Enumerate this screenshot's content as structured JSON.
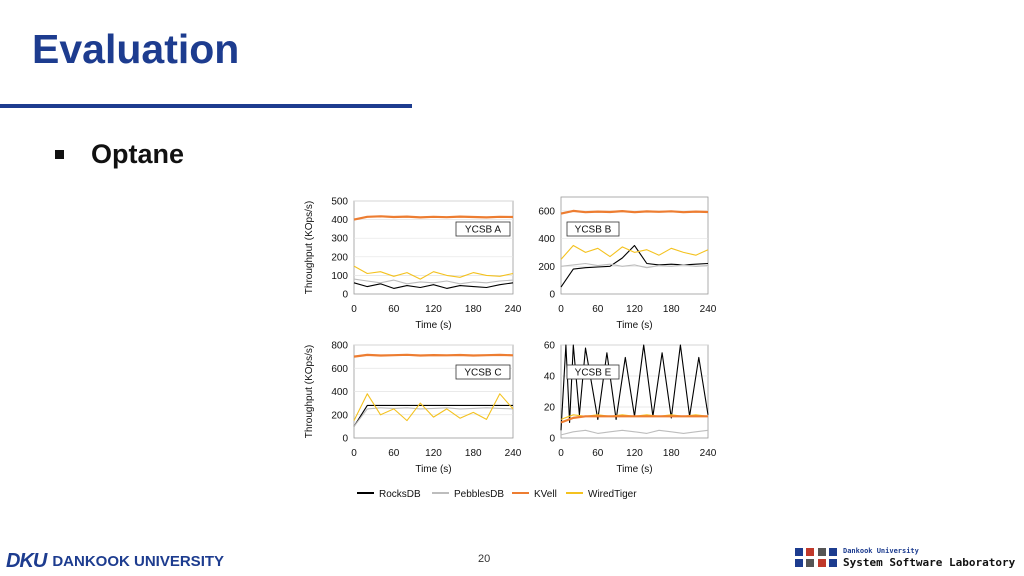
{
  "slide": {
    "title": "Evaluation",
    "bullet": "Optane",
    "page_number": "20",
    "title_color": "#1d3c8f"
  },
  "footer": {
    "university": "DANKOOK UNIVERSITY",
    "univ_mark": "DKU",
    "lab_university": "Dankook University",
    "lab_name": "System Software Laboratory"
  },
  "legend": [
    {
      "name": "RocksDB",
      "color": "#000000"
    },
    {
      "name": "PebblesDB",
      "color": "#bdbdbd"
    },
    {
      "name": "KVell",
      "color": "#ed7d31"
    },
    {
      "name": "WiredTiger",
      "color": "#f4c21f"
    }
  ],
  "chart_data": [
    {
      "type": "line",
      "label": "YCSB A",
      "xlabel": "Time (s)",
      "ylabel": "Throughput (KOps/s)",
      "xlim": [
        0,
        240
      ],
      "ylim": [
        0,
        500
      ],
      "xticks": [
        0,
        60,
        120,
        180,
        240
      ],
      "yticks": [
        0,
        100,
        200,
        300,
        400,
        500
      ],
      "series": [
        {
          "name": "KVell",
          "color": "#ed7d31",
          "x": [
            0,
            20,
            40,
            60,
            80,
            100,
            120,
            140,
            160,
            180,
            200,
            220,
            240
          ],
          "y": [
            400,
            415,
            418,
            414,
            416,
            412,
            415,
            413,
            416,
            414,
            412,
            415,
            414
          ]
        },
        {
          "name": "WiredTiger",
          "color": "#f4c21f",
          "x": [
            0,
            20,
            40,
            60,
            80,
            100,
            120,
            140,
            160,
            180,
            200,
            220,
            240
          ],
          "y": [
            150,
            110,
            120,
            95,
            115,
            80,
            120,
            100,
            90,
            115,
            100,
            95,
            110
          ]
        },
        {
          "name": "PebblesDB",
          "color": "#bdbdbd",
          "x": [
            0,
            20,
            40,
            60,
            80,
            100,
            120,
            140,
            160,
            180,
            200,
            220,
            240
          ],
          "y": [
            80,
            70,
            60,
            75,
            55,
            65,
            60,
            70,
            55,
            65,
            60,
            70,
            75
          ]
        },
        {
          "name": "RocksDB",
          "color": "#000000",
          "x": [
            0,
            20,
            40,
            60,
            80,
            100,
            120,
            140,
            160,
            180,
            200,
            220,
            240
          ],
          "y": [
            60,
            40,
            55,
            30,
            45,
            35,
            50,
            30,
            45,
            40,
            35,
            50,
            60
          ]
        }
      ]
    },
    {
      "type": "line",
      "label": "YCSB B",
      "xlabel": "Time (s)",
      "ylabel": "",
      "xlim": [
        0,
        240
      ],
      "ylim": [
        0,
        700
      ],
      "xticks": [
        0,
        60,
        120,
        180,
        240
      ],
      "yticks": [
        0,
        200,
        400,
        600
      ],
      "series": [
        {
          "name": "KVell",
          "color": "#ed7d31",
          "x": [
            0,
            20,
            40,
            60,
            80,
            100,
            120,
            140,
            160,
            180,
            200,
            220,
            240
          ],
          "y": [
            580,
            600,
            590,
            595,
            592,
            598,
            590,
            596,
            593,
            597,
            590,
            595,
            592
          ]
        },
        {
          "name": "WiredTiger",
          "color": "#f4c21f",
          "x": [
            0,
            20,
            40,
            60,
            80,
            100,
            120,
            140,
            160,
            180,
            200,
            220,
            240
          ],
          "y": [
            250,
            350,
            300,
            330,
            270,
            340,
            300,
            320,
            280,
            330,
            300,
            280,
            320
          ]
        },
        {
          "name": "PebblesDB",
          "color": "#bdbdbd",
          "x": [
            0,
            20,
            40,
            60,
            80,
            100,
            120,
            140,
            160,
            180,
            200,
            220,
            240
          ],
          "y": [
            200,
            210,
            220,
            205,
            215,
            200,
            210,
            190,
            205,
            200,
            210,
            200,
            205
          ]
        },
        {
          "name": "RocksDB",
          "color": "#000000",
          "x": [
            0,
            20,
            40,
            60,
            80,
            100,
            120,
            140,
            160,
            180,
            200,
            220,
            240
          ],
          "y": [
            50,
            180,
            190,
            195,
            200,
            260,
            350,
            220,
            210,
            215,
            210,
            215,
            220
          ]
        }
      ]
    },
    {
      "type": "line",
      "label": "YCSB C",
      "xlabel": "Time (s)",
      "ylabel": "Throughput (KOps/s)",
      "xlim": [
        0,
        240
      ],
      "ylim": [
        0,
        800
      ],
      "xticks": [
        0,
        60,
        120,
        180,
        240
      ],
      "yticks": [
        0,
        200,
        400,
        600,
        800
      ],
      "series": [
        {
          "name": "KVell",
          "color": "#ed7d31",
          "x": [
            0,
            20,
            40,
            60,
            80,
            100,
            120,
            140,
            160,
            180,
            200,
            220,
            240
          ],
          "y": [
            700,
            715,
            710,
            712,
            716,
            710,
            713,
            711,
            714,
            710,
            712,
            715,
            711
          ]
        },
        {
          "name": "WiredTiger",
          "color": "#f4c21f",
          "x": [
            0,
            20,
            40,
            60,
            80,
            100,
            120,
            140,
            160,
            180,
            200,
            220,
            240
          ],
          "y": [
            150,
            380,
            200,
            250,
            150,
            300,
            180,
            250,
            170,
            220,
            160,
            380,
            250
          ]
        },
        {
          "name": "PebblesDB",
          "color": "#bdbdbd",
          "x": [
            0,
            20,
            40,
            60,
            80,
            100,
            120,
            140,
            160,
            180,
            200,
            220,
            240
          ],
          "y": [
            100,
            250,
            260,
            255,
            260,
            250,
            255,
            260,
            250,
            255,
            260,
            255,
            250
          ]
        },
        {
          "name": "RocksDB",
          "color": "#000000",
          "x": [
            0,
            20,
            40,
            60,
            80,
            100,
            120,
            140,
            160,
            180,
            200,
            220,
            240
          ],
          "y": [
            100,
            280,
            280,
            280,
            280,
            280,
            280,
            280,
            280,
            280,
            280,
            280,
            280
          ]
        }
      ]
    },
    {
      "type": "line",
      "label": "YCSB E",
      "xlabel": "Time (s)",
      "ylabel": "",
      "xlim": [
        0,
        240
      ],
      "ylim": [
        0,
        60
      ],
      "xticks": [
        0,
        60,
        120,
        180,
        240
      ],
      "yticks": [
        0,
        20,
        40,
        60
      ],
      "series": [
        {
          "name": "KVell",
          "color": "#ed7d31",
          "x": [
            0,
            20,
            40,
            60,
            80,
            100,
            120,
            140,
            160,
            180,
            200,
            220,
            240
          ],
          "y": [
            10,
            13,
            14,
            14,
            14,
            14,
            14,
            14,
            14,
            14,
            14,
            14,
            14
          ]
        },
        {
          "name": "WiredTiger",
          "color": "#f4c21f",
          "x": [
            0,
            20,
            40,
            60,
            80,
            100,
            120,
            140,
            160,
            180,
            200,
            220,
            240
          ],
          "y": [
            12,
            15,
            14,
            15,
            14,
            15,
            14,
            15,
            14,
            15,
            14,
            15,
            14
          ]
        },
        {
          "name": "PebblesDB",
          "color": "#bdbdbd",
          "x": [
            0,
            20,
            40,
            60,
            80,
            100,
            120,
            140,
            160,
            180,
            200,
            220,
            240
          ],
          "y": [
            2,
            4,
            5,
            3,
            4,
            5,
            4,
            3,
            5,
            4,
            3,
            4,
            5
          ]
        },
        {
          "name": "RocksDB",
          "color": "#000000",
          "x": [
            0,
            8,
            14,
            20,
            30,
            40,
            60,
            75,
            90,
            105,
            120,
            135,
            150,
            165,
            180,
            195,
            210,
            225,
            240
          ],
          "y": [
            5,
            60,
            10,
            60,
            15,
            58,
            12,
            55,
            12,
            52,
            14,
            60,
            14,
            55,
            13,
            60,
            14,
            52,
            15
          ]
        }
      ]
    }
  ]
}
